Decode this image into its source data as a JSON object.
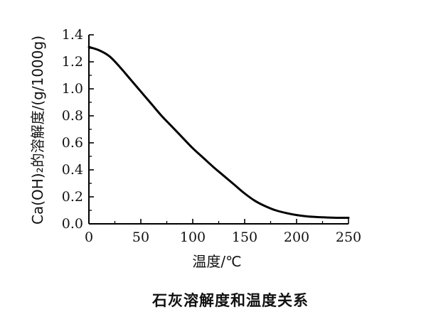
{
  "chart_data": {
    "type": "line",
    "title": "",
    "caption": "石灰溶解度和温度关系",
    "xlabel": "温度/℃",
    "ylabel": "Ca(OH)₂的溶解度/(g/1000g)",
    "xlim": [
      0,
      250
    ],
    "ylim": [
      0.0,
      1.4
    ],
    "x_ticks": [
      "0",
      "50",
      "100",
      "150",
      "200",
      "250"
    ],
    "y_ticks": [
      "0.0",
      "0.2",
      "0.4",
      "0.6",
      "0.8",
      "1.0",
      "1.2",
      "1.4"
    ],
    "grid": false,
    "legend": "none",
    "series": [
      {
        "x": [
          0,
          10,
          20,
          30,
          40,
          50,
          60,
          70,
          80,
          90,
          100,
          110,
          120,
          130,
          140,
          150,
          160,
          170,
          180,
          190,
          200,
          210,
          220,
          230,
          240,
          250
        ],
        "y": [
          1.31,
          1.285,
          1.24,
          1.16,
          1.07,
          0.98,
          0.89,
          0.8,
          0.72,
          0.64,
          0.56,
          0.49,
          0.42,
          0.355,
          0.29,
          0.225,
          0.17,
          0.13,
          0.1,
          0.08,
          0.065,
          0.055,
          0.05,
          0.047,
          0.045,
          0.045
        ]
      }
    ],
    "line_color": "#000000"
  }
}
